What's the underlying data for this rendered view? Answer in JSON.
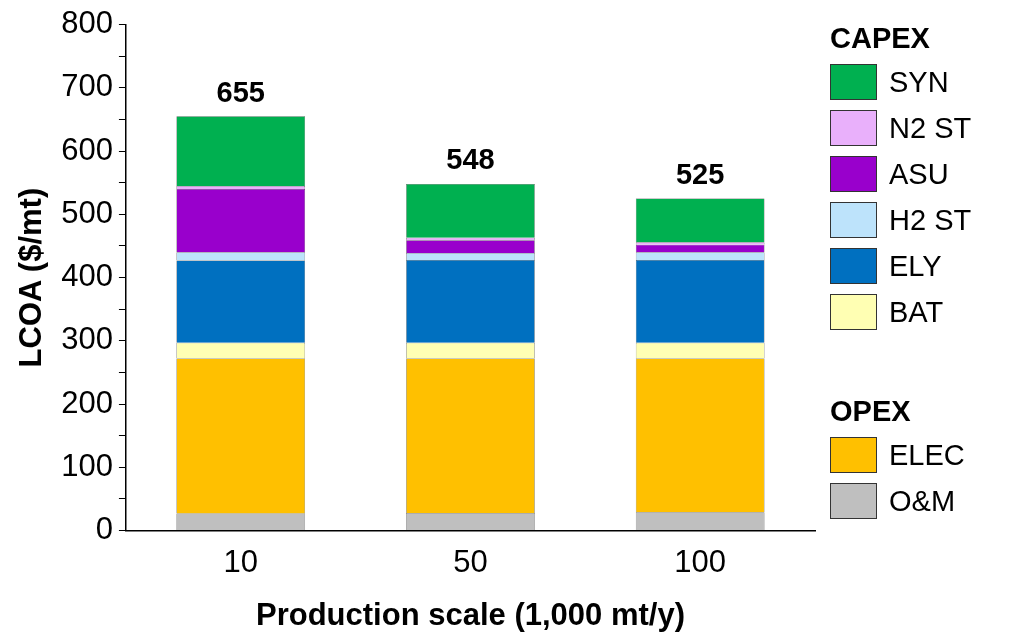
{
  "chart_data": {
    "type": "bar",
    "xlabel": "Production scale (1,000 mt/y)",
    "ylabel": "LCOA ($/mt)",
    "categories": [
      "10",
      "50",
      "100"
    ],
    "stacked": true,
    "series": [
      {
        "name": "O&M",
        "color": "#bfbfbf",
        "values": [
          27,
          28,
          29
        ]
      },
      {
        "name": "ELEC",
        "color": "#ffc000",
        "values": [
          245,
          244,
          243
        ]
      },
      {
        "name": "BAT",
        "color": "#ffffb3",
        "values": [
          25,
          25,
          25
        ]
      },
      {
        "name": "ELY",
        "color": "#0070c0",
        "values": [
          130,
          131,
          131
        ]
      },
      {
        "name": "H2 ST",
        "color": "#bde3fb",
        "values": [
          13,
          11,
          12
        ]
      },
      {
        "name": "ASU",
        "color": "#9900cc",
        "values": [
          100,
          20,
          12
        ]
      },
      {
        "name": "N2 ST",
        "color": "#e9b0fb",
        "values": [
          5,
          4,
          4
        ]
      },
      {
        "name": "SYN",
        "color": "#00b050",
        "values": [
          110,
          85,
          69
        ]
      }
    ],
    "totals": [
      "655",
      "548",
      "525"
    ],
    "ylim": [
      0,
      800
    ],
    "yticks": [
      0,
      {
        "value": 50,
        "label": null
      },
      100,
      {
        "value": 150,
        "label": null
      },
      200,
      {
        "value": 250,
        "label": null
      },
      300,
      {
        "value": 350,
        "label": null
      },
      400,
      {
        "value": 450,
        "label": null
      },
      500,
      {
        "value": 550,
        "label": null
      },
      600,
      {
        "value": 650,
        "label": null
      },
      700,
      {
        "value": 750,
        "label": null
      },
      800
    ],
    "legend": "right",
    "legend_title": "CAPEX",
    "annotations": [
      "OPEX"
    ],
    "grid": false
  }
}
